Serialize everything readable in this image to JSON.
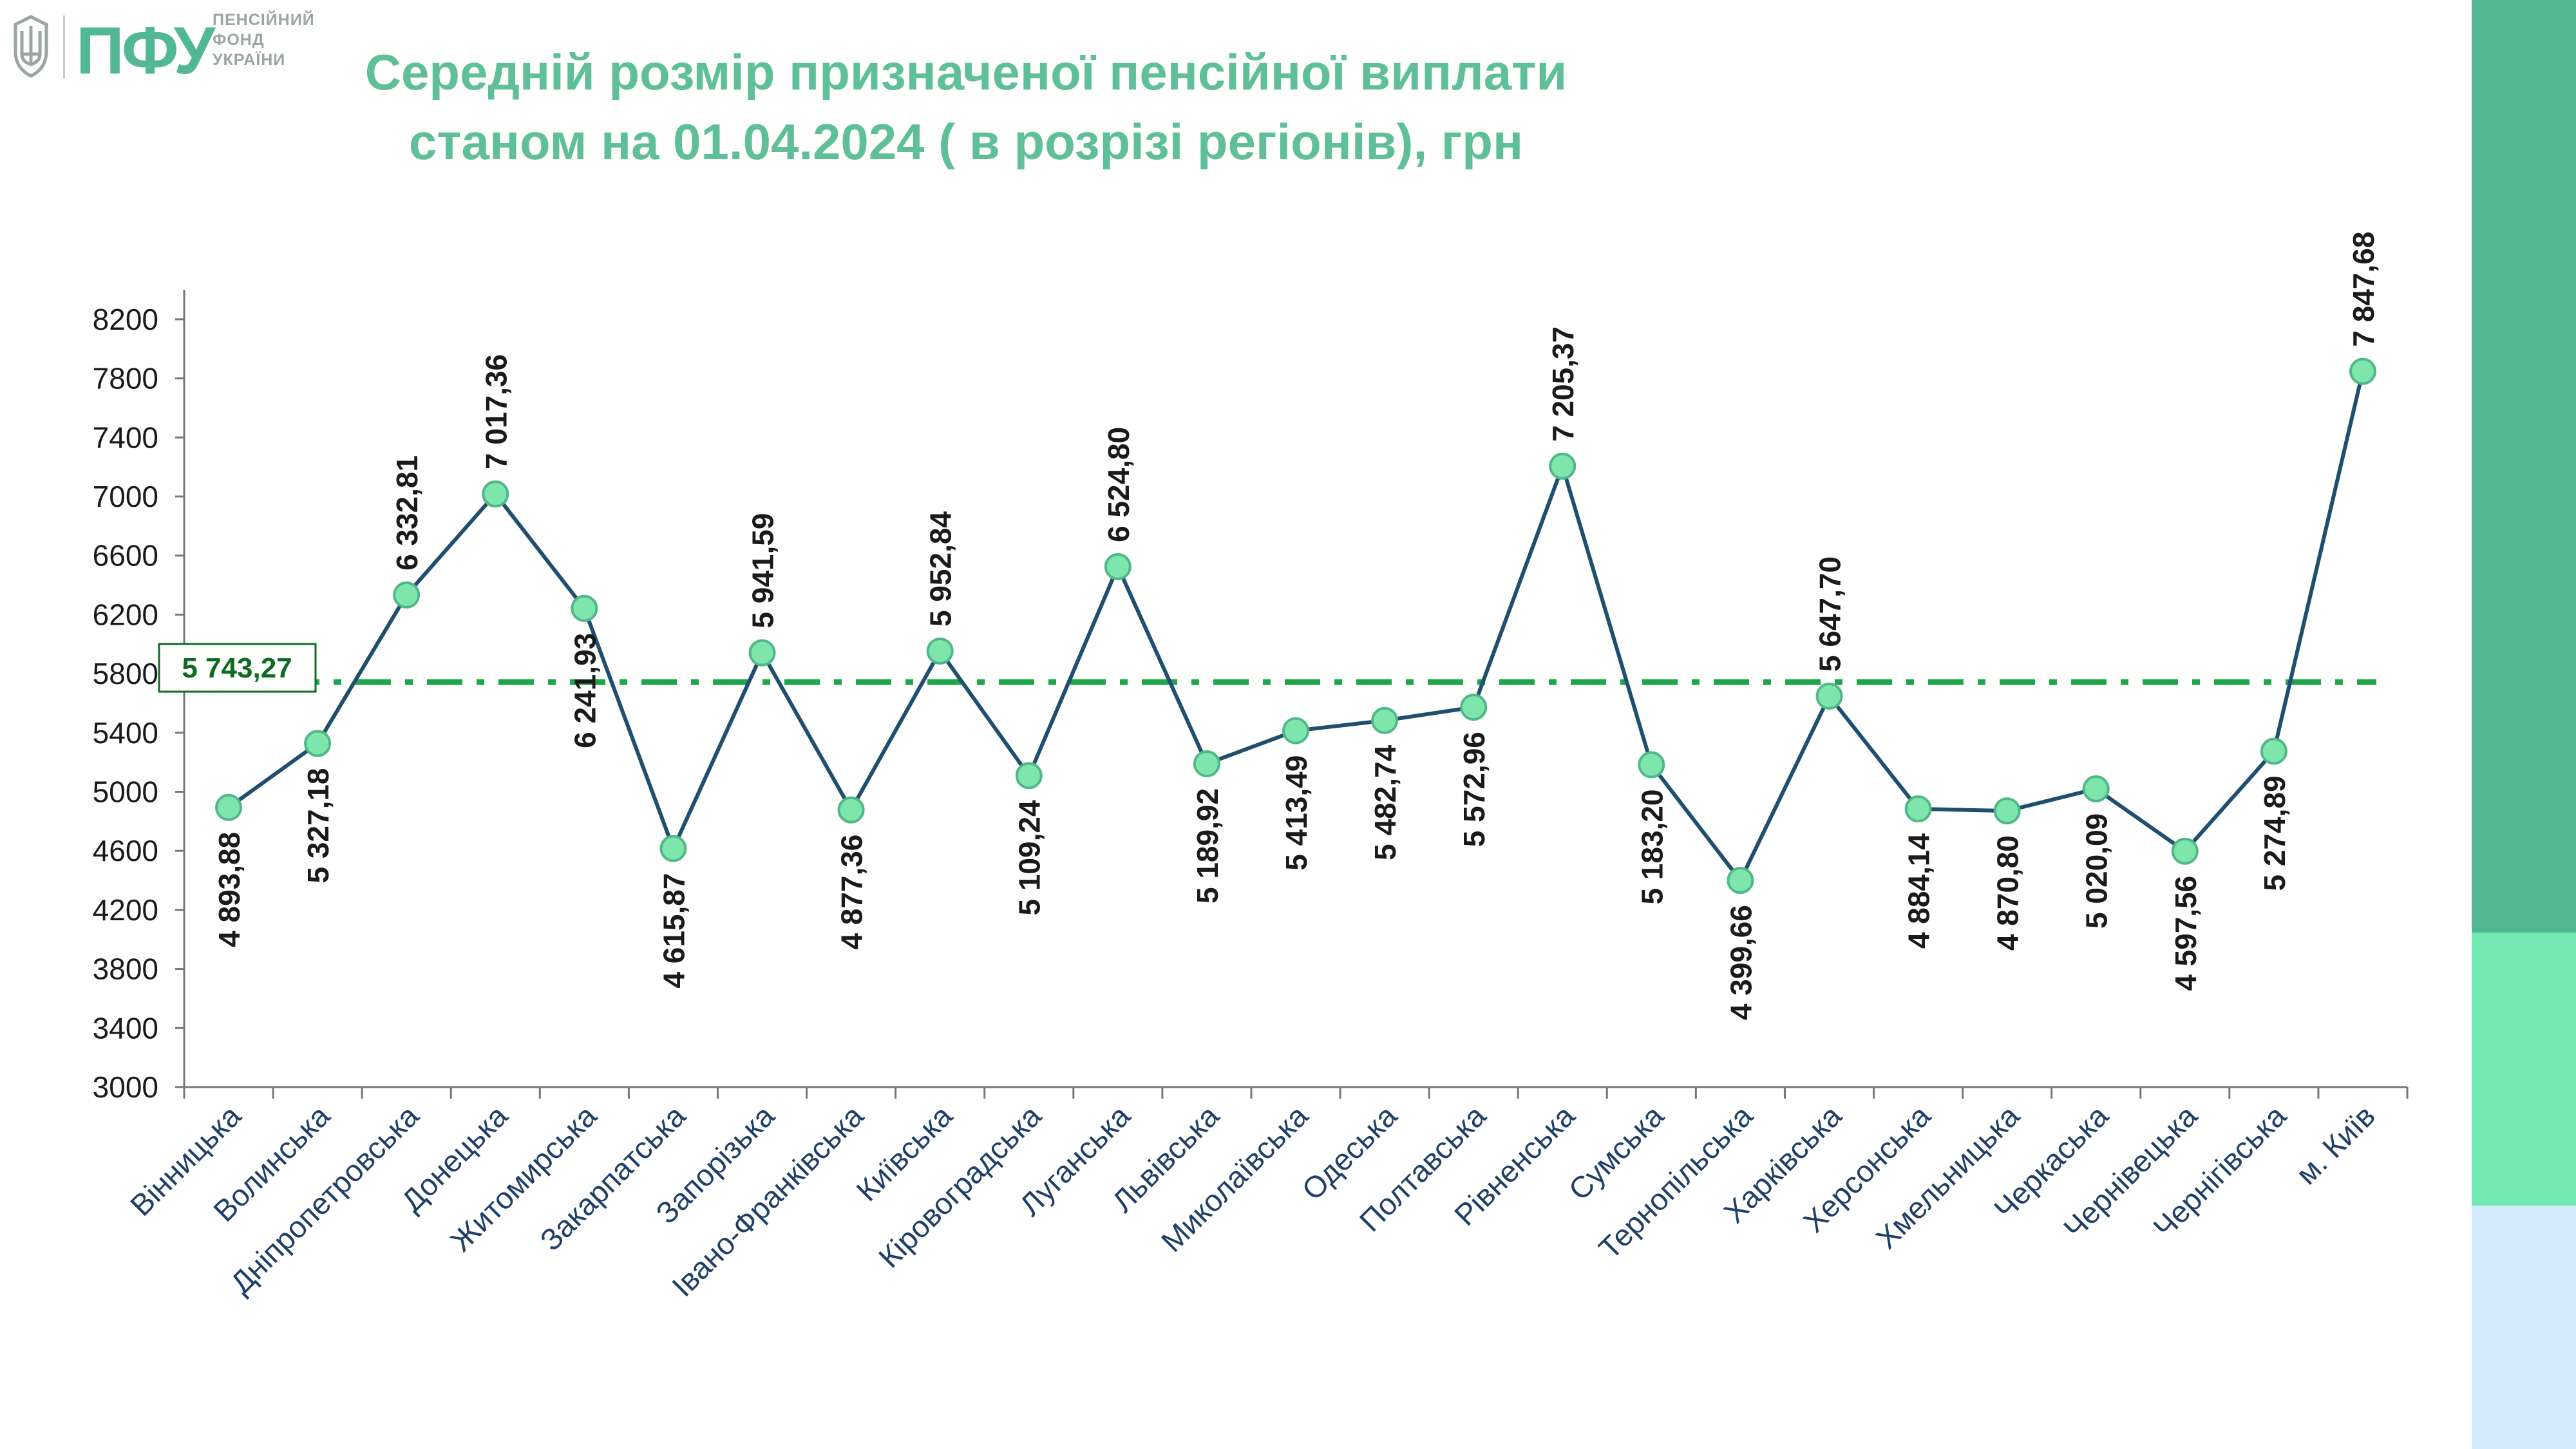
{
  "header": {
    "logo_text": "ПФУ",
    "org_name": [
      "ПЕНСІЙНИЙ",
      "ФОНД",
      "УКРАЇНИ"
    ]
  },
  "colors": {
    "title": "#5fbf98",
    "line": "#1f4e6e",
    "marker_fill": "#7ee6ad",
    "marker_stroke": "#4fb886",
    "average_line": "#1fa54a",
    "average_label": "#0e6b1f",
    "axis": "#777777",
    "side_bar": [
      "#52b893",
      "#73e8b0",
      "#d3ebfb"
    ]
  },
  "chart_data": {
    "type": "line",
    "title": [
      "Середній розмір призначеної пенсійної виплати",
      "станом на 01.04.2024 ( в розрізі регіонів), грн"
    ],
    "xlabel": "",
    "ylabel": "",
    "ylim": [
      3000,
      8400
    ],
    "yticks": [
      3000,
      3400,
      3800,
      4200,
      4600,
      5000,
      5400,
      5800,
      6200,
      6600,
      7000,
      7400,
      7800,
      8200
    ],
    "grid": false,
    "legend": "none",
    "categories": [
      "Вінницька",
      "Волинська",
      "Дніпропетровська",
      "Донецька",
      "Житомирська",
      "Закарпатська",
      "Запорізька",
      "Івано-Франківська",
      "Київська",
      "Кіровоградська",
      "Луганська",
      "Львівська",
      "Миколаївська",
      "Одеська",
      "Полтавська",
      "Рівненська",
      "Сумська",
      "Тернопільська",
      "Харківська",
      "Херсонська",
      "Хмельницька",
      "Черкаська",
      "Чернівецька",
      "Чернігівська",
      "м. Київ"
    ],
    "values": [
      4893.88,
      5327.18,
      6332.81,
      7017.36,
      6241.93,
      4615.87,
      5941.59,
      4877.36,
      5952.84,
      5109.24,
      6524.8,
      5189.92,
      5413.49,
      5482.74,
      5572.96,
      7205.37,
      5183.2,
      4399.66,
      5647.7,
      4884.14,
      4870.8,
      5020.09,
      4597.56,
      5274.89,
      7847.68
    ],
    "value_labels": [
      "4 893,88",
      "5 327,18",
      "6 332,81",
      "7 017,36",
      "6 241,93",
      "4 615,87",
      "5 941,59",
      "4 877,36",
      "5 952,84",
      "5 109,24",
      "6 524,80",
      "5 189,92",
      "5 413,49",
      "5 482,74",
      "5 572,96",
      "7 205,37",
      "5 183,20",
      "4 399,66",
      "5 647,70",
      "4 884,14",
      "4 870,80",
      "5 020,09",
      "4 597,56",
      "5 274,89",
      "7 847,68"
    ],
    "label_position": [
      "below",
      "below",
      "above",
      "above",
      "below",
      "below",
      "above",
      "below",
      "above",
      "below",
      "above",
      "below",
      "below",
      "below",
      "below",
      "above",
      "below",
      "below",
      "above",
      "below",
      "below",
      "below",
      "below",
      "below",
      "above"
    ],
    "average": {
      "value": 5743.27,
      "label": "5 743,27"
    }
  }
}
